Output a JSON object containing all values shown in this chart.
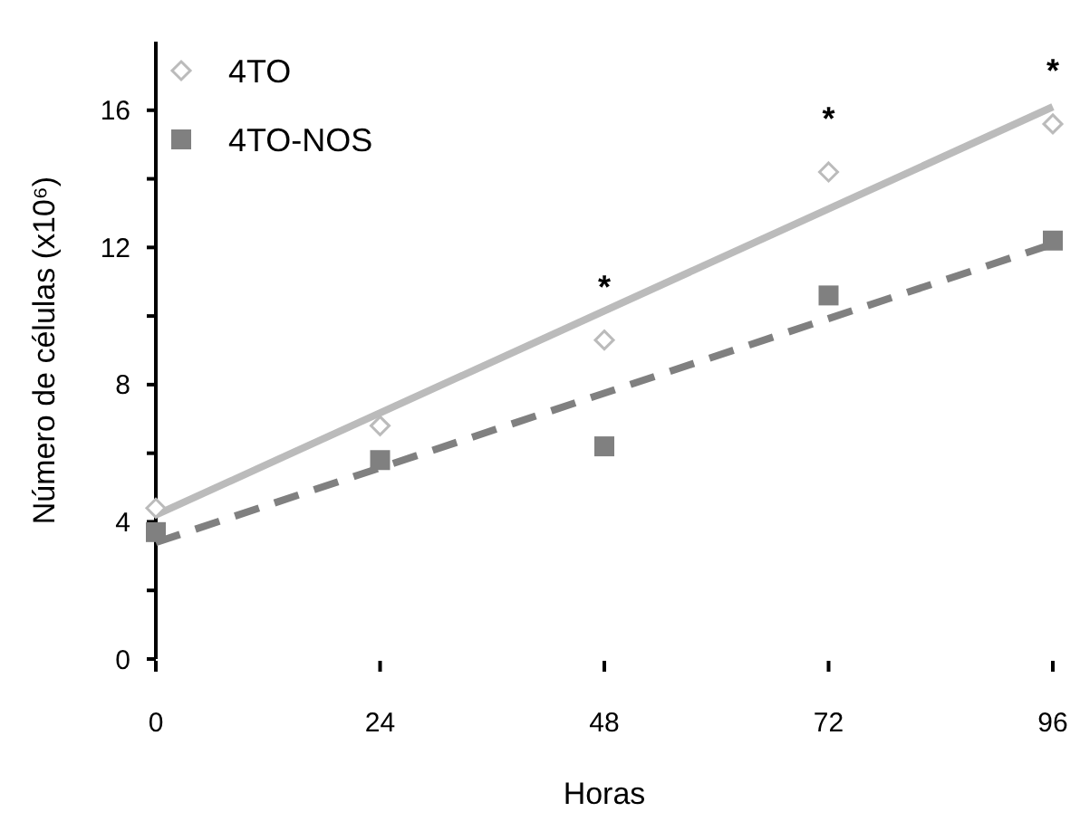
{
  "chart_data": {
    "type": "scatter",
    "xlabel": "Horas",
    "ylabel": "Número de células (x10⁶)",
    "xlim": [
      0,
      96
    ],
    "xticks": [
      0,
      24,
      48,
      72,
      96
    ],
    "ylim": [
      0,
      18
    ],
    "yticks": [
      0,
      {
        "value": 2,
        "label": null
      },
      4,
      {
        "value": 6,
        "label": null
      },
      8,
      {
        "value": 10,
        "label": null
      },
      12,
      {
        "value": 14,
        "label": null
      },
      16
    ],
    "grid": false,
    "legend": "top left",
    "series": [
      {
        "name": "4TO",
        "color": "#bbbbbb",
        "marker": "diamond",
        "x": [
          0,
          24,
          48,
          72,
          96
        ],
        "values": [
          4.4,
          6.8,
          9.3,
          14.2,
          15.6
        ]
      },
      {
        "name": "4TO-NOS",
        "color": "#808080",
        "marker": "square",
        "x": [
          0,
          24,
          48,
          72,
          96
        ],
        "values": [
          3.7,
          5.8,
          6.2,
          10.6,
          12.2
        ]
      },
      {
        "type": "line",
        "color": "#bbbbbb",
        "marker": "none",
        "line_style": "solid",
        "x": [
          0,
          96
        ],
        "values": [
          4.2,
          16.1
        ]
      },
      {
        "type": "line",
        "color": "#808080",
        "marker": "none",
        "line_style": "dashed",
        "x": [
          0,
          96
        ],
        "values": [
          3.4,
          12.1
        ]
      }
    ],
    "annotations": [
      {
        "text": "*",
        "x": 48,
        "y": 9.3
      },
      {
        "text": "*",
        "x": 72,
        "y": 14.2
      },
      {
        "text": "*",
        "x": 96,
        "y": 15.6
      }
    ]
  }
}
